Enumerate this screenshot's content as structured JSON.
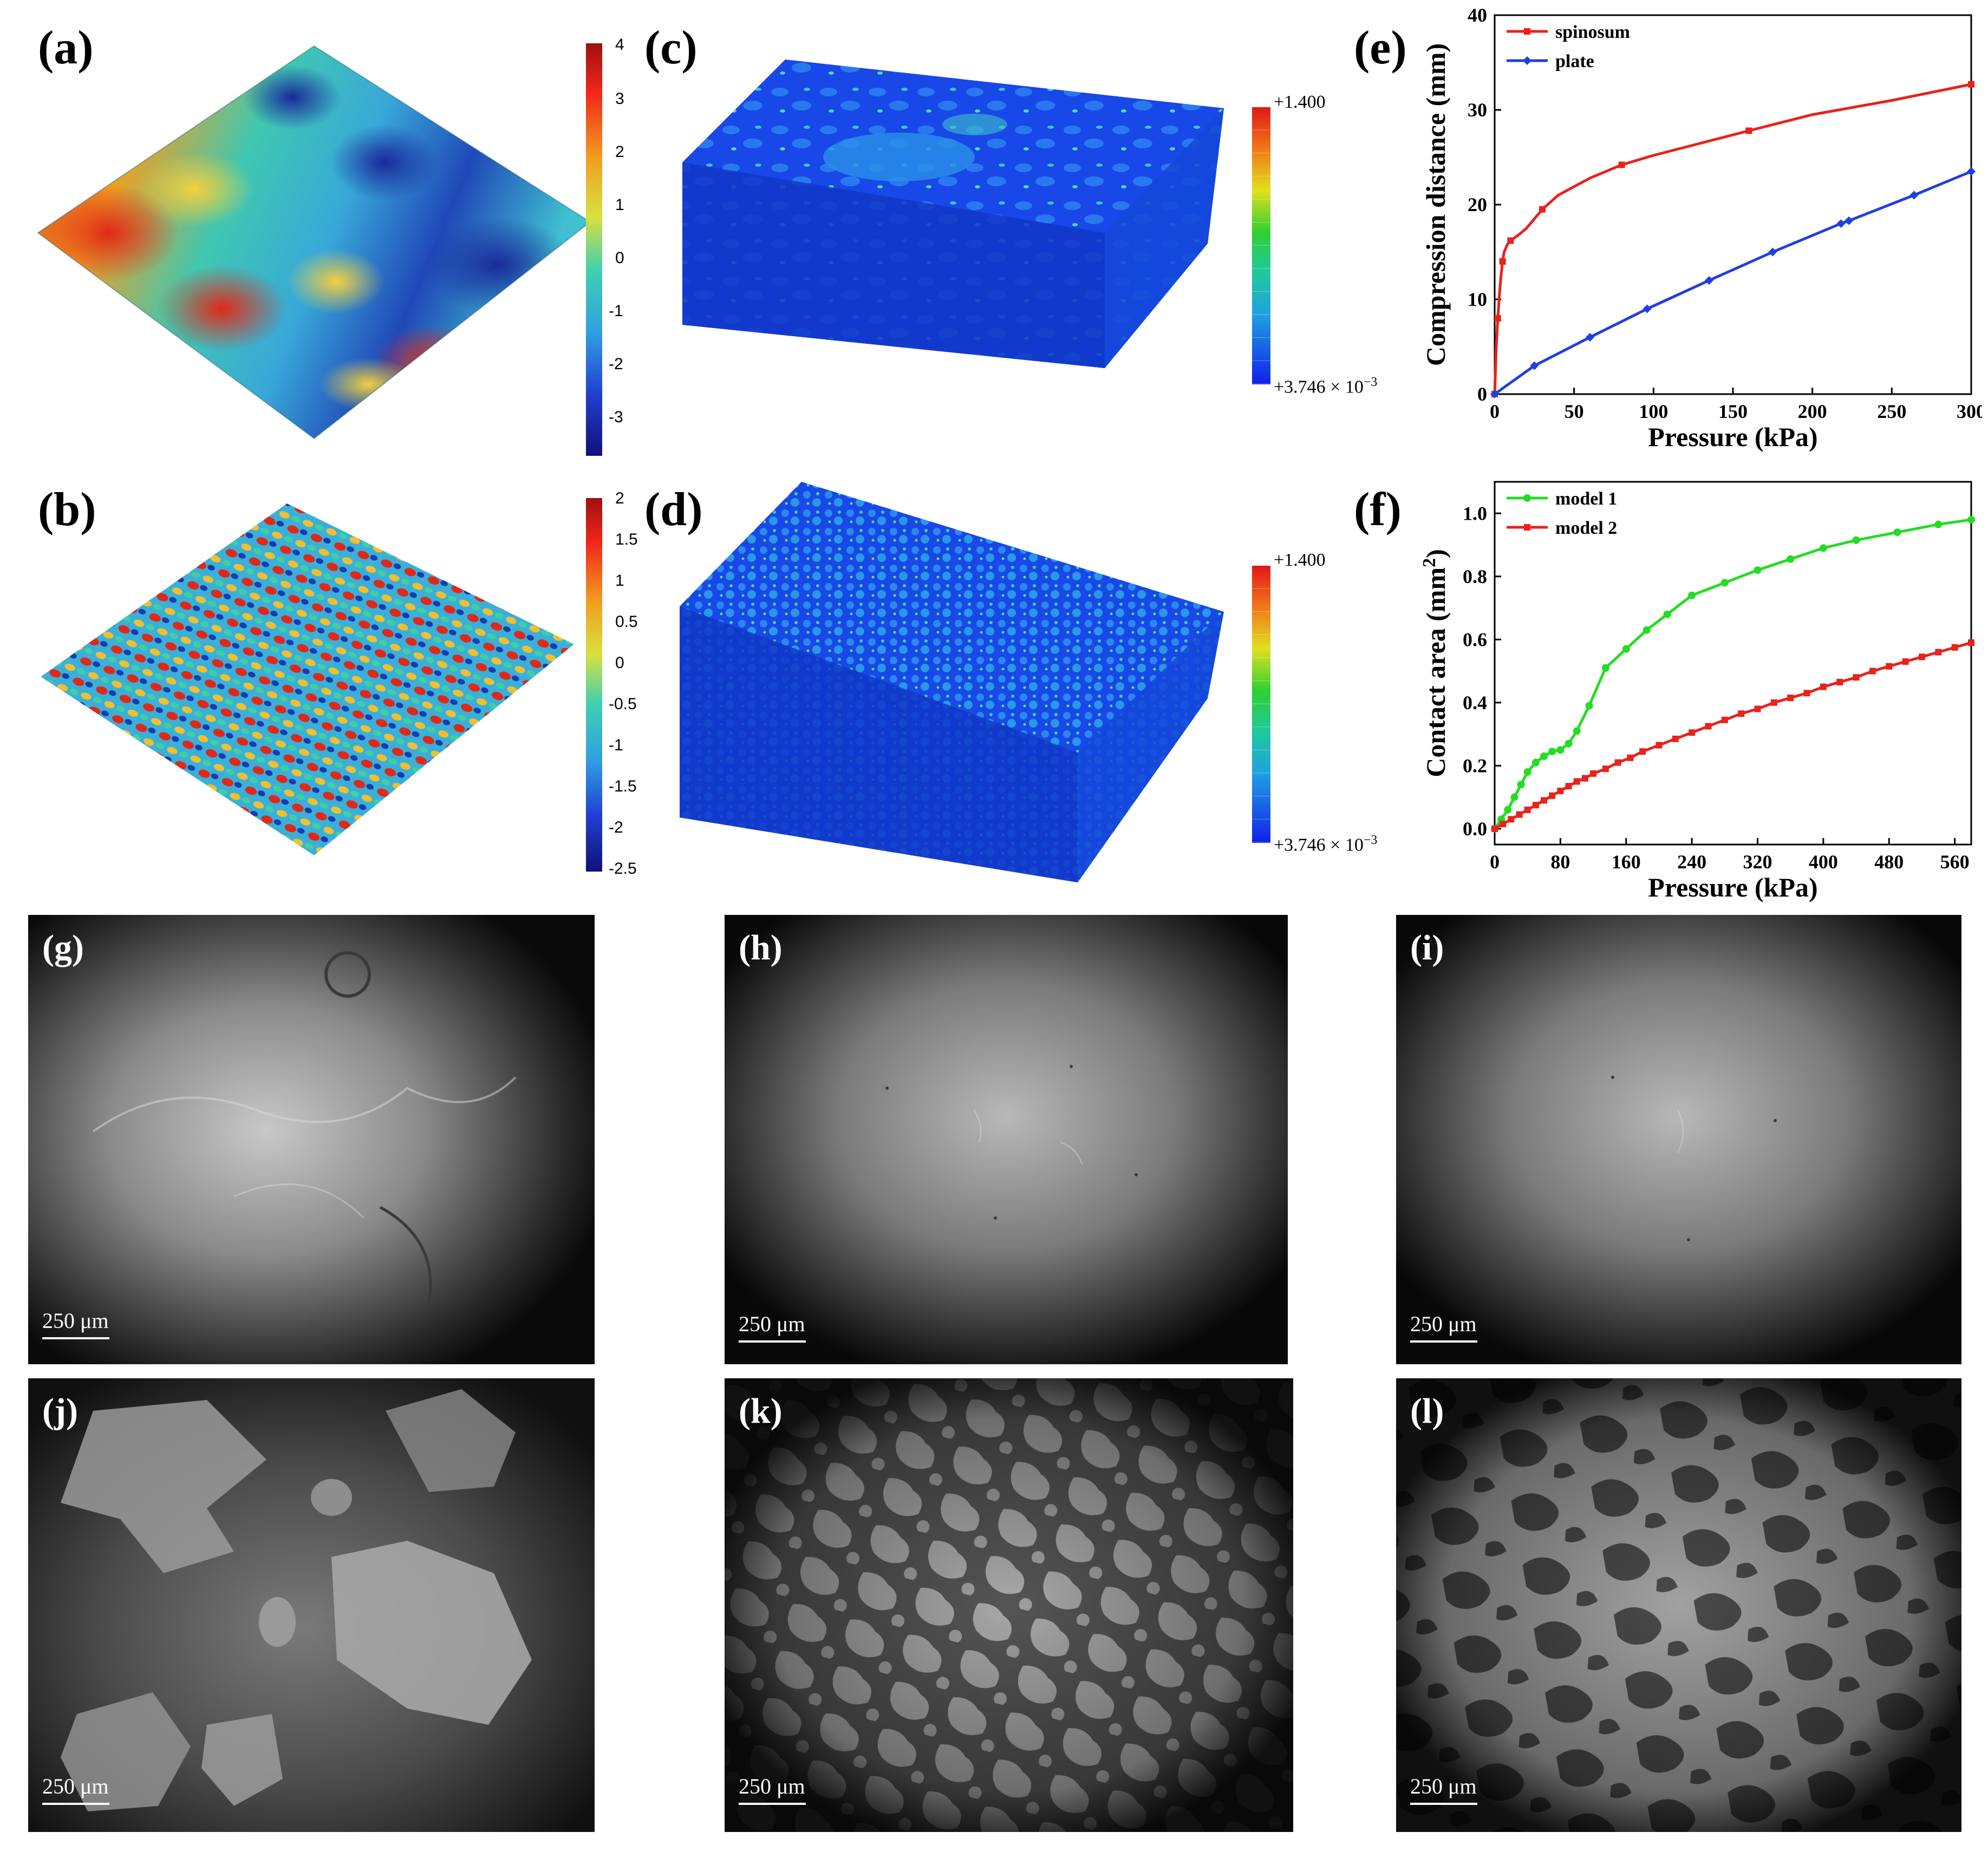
{
  "panels": {
    "a": {
      "label": "(a)",
      "colorbar_ticks": [
        "4",
        "3",
        "2",
        "1",
        "0",
        "-1",
        "-2",
        "-3"
      ]
    },
    "b": {
      "label": "(b)",
      "colorbar_ticks": [
        "2",
        "1.5",
        "1",
        "0.5",
        "0",
        "-0.5",
        "-1",
        "-1.5",
        "-2",
        "-2.5"
      ]
    },
    "c": {
      "label": "(c)",
      "colorbar_max": "+1.400",
      "colorbar_min_prefix": "+3.746 × 10",
      "colorbar_min_exp": "−3"
    },
    "d": {
      "label": "(d)",
      "colorbar_max": "+1.400",
      "colorbar_min_prefix": "+3.746 × 10",
      "colorbar_min_exp": "−3"
    },
    "e": {
      "label": "(e)"
    },
    "f": {
      "label": "(f)"
    },
    "g": {
      "label": "(g)",
      "scale": "250 μm"
    },
    "h": {
      "label": "(h)",
      "scale": "250 μm"
    },
    "i": {
      "label": "(i)",
      "scale": "250 μm"
    },
    "j": {
      "label": "(j)",
      "scale": "250 μm"
    },
    "k": {
      "label": "(k)",
      "scale": "250 μm"
    },
    "l": {
      "label": "(l)",
      "scale": "250 μm"
    }
  },
  "colors": {
    "red": "#e8221c",
    "blue": "#1f3fe0",
    "green": "#22dd22",
    "fem_blue": "#1440e0"
  },
  "chart_data": [
    {
      "id": "e",
      "type": "line",
      "xlabel": "Pressure (kPa)",
      "ylabel": "Compression distance (mm)",
      "xlim": [
        0,
        300
      ],
      "ylim": [
        0,
        40
      ],
      "xticks": [
        0,
        50,
        100,
        150,
        200,
        250,
        300
      ],
      "yticks": [
        0,
        10,
        20,
        30,
        40
      ],
      "legend": "top-left",
      "series": [
        {
          "name": "spinosum",
          "color": "#e8221c",
          "marker": "square",
          "x": [
            0,
            0.5,
            1,
            2,
            3,
            4,
            5,
            6,
            8,
            10,
            15,
            20,
            30,
            40,
            60,
            80,
            100,
            130,
            160,
            200,
            250,
            300
          ],
          "y": [
            0,
            2.5,
            5,
            8,
            10.5,
            12.5,
            14,
            15,
            15.8,
            16.2,
            16.8,
            17.5,
            19.5,
            21,
            22.8,
            24.2,
            25.2,
            26.5,
            27.8,
            29.5,
            31,
            32.7
          ]
        },
        {
          "name": "plate",
          "color": "#1f3fe0",
          "marker": "diamond",
          "x": [
            0,
            25,
            60,
            96,
            135,
            175,
            218,
            223,
            264,
            300
          ],
          "y": [
            0,
            3.0,
            6.0,
            9.0,
            12.0,
            15.0,
            18.0,
            18.3,
            21.0,
            23.5
          ]
        }
      ]
    },
    {
      "id": "f",
      "type": "line",
      "xlabel": "Pressure (kPa)",
      "ylabel": "Contact area (mm2)",
      "xlim": [
        0,
        580
      ],
      "ylim": [
        -0.05,
        1.1
      ],
      "xticks": [
        0,
        80,
        160,
        240,
        320,
        400,
        480,
        560
      ],
      "yticks": [
        0.0,
        0.2,
        0.4,
        0.6,
        0.8,
        1.0
      ],
      "legend": "top-left",
      "series": [
        {
          "name": "model 1",
          "color": "#22dd22",
          "marker": "circle",
          "x": [
            0,
            8,
            16,
            24,
            32,
            40,
            50,
            60,
            70,
            80,
            90,
            100,
            115,
            135,
            160,
            185,
            210,
            240,
            280,
            320,
            360,
            400,
            440,
            490,
            540,
            580
          ],
          "y": [
            0.0,
            0.03,
            0.06,
            0.1,
            0.14,
            0.18,
            0.21,
            0.23,
            0.245,
            0.25,
            0.27,
            0.31,
            0.39,
            0.51,
            0.57,
            0.63,
            0.68,
            0.74,
            0.78,
            0.82,
            0.855,
            0.89,
            0.915,
            0.94,
            0.965,
            0.98
          ]
        },
        {
          "name": "model 2",
          "color": "#e8221c",
          "marker": "square",
          "x": [
            0,
            10,
            20,
            30,
            40,
            50,
            60,
            70,
            80,
            90,
            100,
            110,
            120,
            135,
            150,
            165,
            180,
            200,
            220,
            240,
            260,
            280,
            300,
            320,
            340,
            360,
            380,
            400,
            420,
            440,
            460,
            480,
            500,
            520,
            540,
            560,
            580
          ],
          "y": [
            0.0,
            0.015,
            0.03,
            0.045,
            0.06,
            0.075,
            0.09,
            0.105,
            0.12,
            0.135,
            0.15,
            0.16,
            0.175,
            0.19,
            0.21,
            0.225,
            0.245,
            0.265,
            0.285,
            0.305,
            0.325,
            0.345,
            0.365,
            0.38,
            0.4,
            0.415,
            0.43,
            0.45,
            0.465,
            0.48,
            0.5,
            0.515,
            0.53,
            0.545,
            0.56,
            0.575,
            0.59
          ]
        }
      ]
    }
  ]
}
